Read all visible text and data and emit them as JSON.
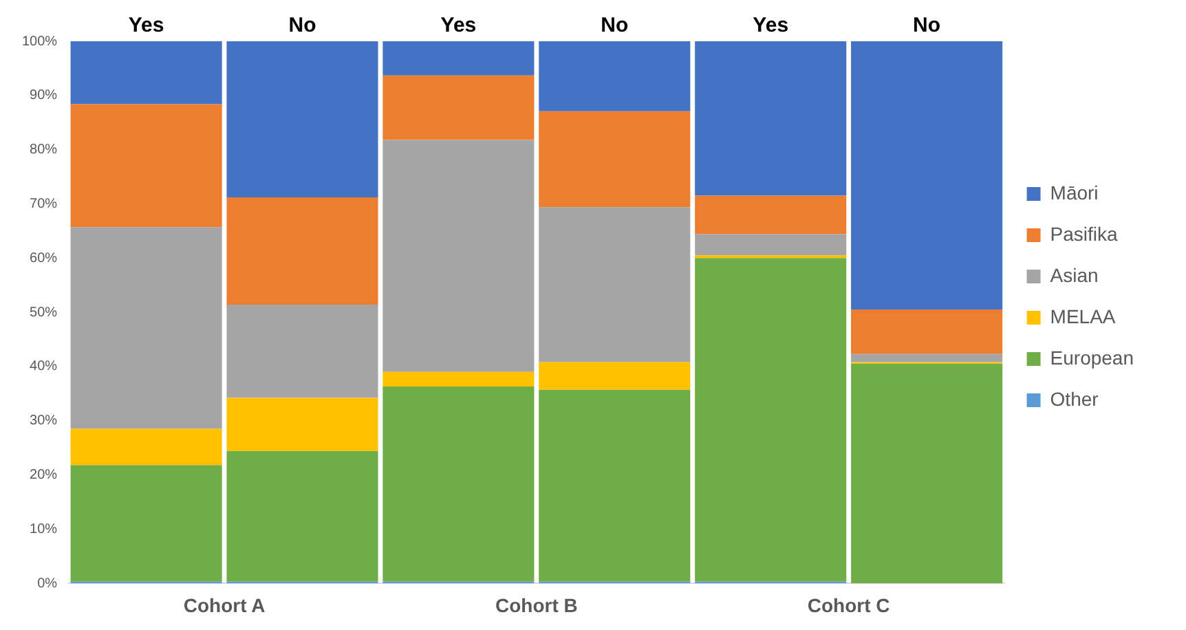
{
  "chart_data": {
    "type": "bar",
    "stacked": true,
    "categories": [
      "Yes",
      "No",
      "Yes",
      "No",
      "Yes",
      "No"
    ],
    "series": [
      {
        "name": "Other",
        "color": "#5b9bd5",
        "values": [
          0.3,
          0.3,
          0.3,
          0.3,
          0.3,
          0
        ]
      },
      {
        "name": "European",
        "color": "#70ad47",
        "values": [
          21.5,
          24.1,
          36.0,
          35.4,
          59.7,
          40.5
        ]
      },
      {
        "name": "MELAA",
        "color": "#ffc000",
        "values": [
          6.7,
          9.8,
          2.7,
          5.1,
          0.5,
          0.3
        ]
      },
      {
        "name": "Asian",
        "color": "#a5a5a5",
        "values": [
          37.2,
          17.2,
          42.8,
          28.6,
          3.9,
          1.5
        ]
      },
      {
        "name": "Pasifika",
        "color": "#ed7d31",
        "values": [
          22.7,
          19.8,
          11.9,
          17.7,
          7.1,
          8.2
        ]
      },
      {
        "name": "Māori",
        "color": "#4472c4",
        "values": [
          11.6,
          28.8,
          6.3,
          12.9,
          28.5,
          49.5
        ]
      }
    ],
    "ylim": [
      0,
      100
    ],
    "yticks": [
      {
        "value": 0,
        "label": "0%"
      },
      {
        "value": 10,
        "label": "10%"
      },
      {
        "value": 20,
        "label": "20%"
      },
      {
        "value": 30,
        "label": "30%"
      },
      {
        "value": 40,
        "label": "40%"
      },
      {
        "value": 50,
        "label": "50%"
      },
      {
        "value": 60,
        "label": "60%"
      },
      {
        "value": 70,
        "label": "70%"
      },
      {
        "value": 80,
        "label": "80%"
      },
      {
        "value": 90,
        "label": "90%"
      },
      {
        "value": 100,
        "label": "100%"
      }
    ],
    "annotations": [
      "Cohort A",
      "Cohort B",
      "Cohort C"
    ],
    "grid": false,
    "legend": "right"
  }
}
